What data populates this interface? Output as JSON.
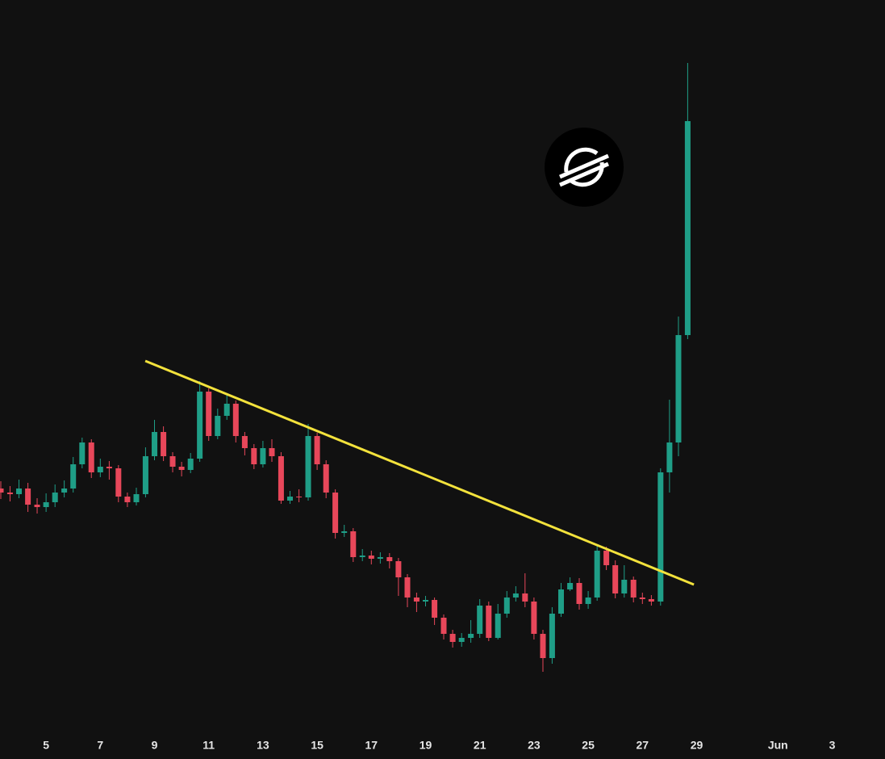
{
  "chart_data": {
    "type": "candlestick",
    "up_color": "#1f9e87",
    "down_color": "#e8475a",
    "xlim": [
      3.3,
      35.95
    ],
    "ylim": [
      0,
      90
    ],
    "xticks": [
      5,
      7,
      9,
      11,
      13,
      15,
      17,
      19,
      21,
      23,
      25,
      27,
      29,
      {
        "value": 32,
        "label": "Jun"
      },
      {
        "value": 34,
        "label": "3"
      }
    ],
    "x": [
      3.33,
      3.67,
      4,
      4.33,
      4.67,
      5,
      5.33,
      5.67,
      6,
      6.33,
      6.67,
      7,
      7.33,
      7.67,
      8,
      8.33,
      8.67,
      9,
      9.33,
      9.67,
      10,
      10.33,
      10.67,
      11,
      11.33,
      11.67,
      12,
      12.33,
      12.67,
      13,
      13.33,
      13.67,
      14,
      14.33,
      14.67,
      15,
      15.33,
      15.67,
      16,
      16.33,
      16.67,
      17,
      17.33,
      17.67,
      18,
      18.33,
      18.67,
      19,
      19.33,
      19.67,
      20,
      20.33,
      20.67,
      21,
      21.33,
      21.67,
      22,
      22.33,
      22.67,
      23,
      23.33,
      23.67,
      24,
      24.33,
      24.67,
      25,
      25.33,
      25.67,
      26,
      26.33,
      26.67,
      27,
      27.33,
      27.67,
      28,
      28.33,
      28.67
    ],
    "open": [
      29.5,
      29.0,
      28.8,
      29.5,
      27.5,
      27.2,
      27.8,
      29.0,
      29.5,
      32.5,
      35.2,
      31.5,
      32.2,
      32.0,
      28.5,
      27.8,
      28.8,
      33.5,
      36.5,
      33.5,
      32.2,
      31.8,
      33.2,
      41.5,
      36.0,
      38.5,
      40.0,
      36.0,
      34.5,
      32.5,
      34.5,
      33.5,
      28.0,
      28.5,
      28.4,
      36.0,
      32.5,
      29.0,
      24.0,
      24.2,
      21.0,
      21.2,
      20.8,
      21.0,
      20.5,
      18.5,
      16.0,
      15.5,
      15.7,
      13.5,
      11.5,
      10.5,
      11.0,
      11.5,
      15.0,
      11.0,
      14.0,
      16.0,
      16.5,
      15.5,
      11.5,
      8.5,
      14.0,
      17.0,
      17.8,
      15.2,
      16.0,
      21.8,
      20.0,
      16.5,
      18.2,
      16.0,
      15.8,
      15.5,
      31.5,
      35.2,
      48.5
    ],
    "high": [
      30.4,
      29.8,
      30.6,
      30.2,
      28.3,
      28.9,
      30.0,
      30.5,
      33.4,
      35.8,
      35.6,
      33.2,
      32.9,
      32.4,
      29.0,
      29.6,
      34.6,
      38.0,
      37.2,
      34.0,
      32.8,
      33.9,
      42.8,
      41.9,
      39.4,
      41.2,
      40.4,
      36.5,
      35.0,
      35.4,
      35.6,
      34.0,
      29.2,
      29.4,
      37.5,
      36.4,
      33.0,
      29.4,
      25.0,
      24.6,
      22.0,
      21.8,
      21.6,
      21.5,
      20.9,
      18.9,
      16.6,
      16.2,
      16.0,
      13.9,
      12.0,
      11.6,
      13.2,
      15.8,
      15.5,
      15.2,
      16.8,
      17.4,
      19.0,
      16.0,
      12.0,
      14.8,
      17.8,
      18.5,
      18.4,
      16.8,
      22.6,
      22.3,
      20.6,
      20.0,
      18.6,
      16.6,
      16.3,
      32.0,
      40.5,
      50.8,
      82.2
    ],
    "low": [
      28.2,
      27.9,
      28.3,
      26.6,
      26.4,
      26.6,
      27.2,
      28.4,
      29.0,
      32.0,
      30.8,
      30.9,
      30.6,
      27.8,
      27.2,
      27.4,
      28.4,
      33.0,
      32.9,
      31.5,
      31.0,
      31.4,
      32.8,
      35.4,
      35.6,
      38.0,
      35.2,
      33.6,
      31.9,
      32.1,
      32.8,
      27.6,
      27.6,
      27.8,
      28.0,
      31.8,
      28.3,
      23.3,
      23.5,
      20.4,
      20.5,
      20.1,
      20.2,
      19.6,
      16.2,
      14.8,
      14.2,
      14.9,
      12.6,
      10.8,
      9.8,
      9.9,
      10.4,
      11.0,
      10.6,
      10.8,
      13.5,
      15.5,
      14.8,
      10.8,
      6.8,
      7.8,
      13.6,
      16.8,
      14.5,
      14.6,
      15.6,
      19.4,
      15.9,
      16.0,
      15.4,
      15.2,
      15.0,
      15.0,
      29.0,
      33.5,
      48.0
    ],
    "close": [
      29.0,
      28.8,
      29.5,
      27.5,
      27.2,
      27.8,
      29.0,
      29.5,
      32.5,
      35.2,
      31.5,
      32.2,
      32.0,
      28.5,
      27.8,
      28.8,
      33.5,
      36.5,
      33.5,
      32.2,
      31.8,
      33.2,
      41.5,
      36.0,
      38.5,
      40.0,
      36.0,
      34.5,
      32.5,
      34.5,
      33.5,
      28.0,
      28.5,
      28.4,
      36.0,
      32.5,
      29.0,
      24.0,
      24.2,
      21.0,
      21.2,
      20.8,
      21.0,
      20.5,
      18.5,
      16.0,
      15.5,
      15.7,
      13.5,
      11.5,
      10.5,
      11.0,
      11.5,
      15.0,
      11.0,
      14.0,
      16.0,
      16.5,
      15.5,
      11.5,
      8.5,
      14.0,
      17.0,
      17.8,
      15.2,
      16.0,
      21.8,
      20.0,
      16.5,
      18.2,
      16.0,
      15.8,
      15.5,
      31.5,
      35.2,
      48.5,
      75.0
    ],
    "trendline": {
      "x": [
        8.66,
        28.9
      ],
      "y": [
        45.3,
        17.6
      ],
      "color": "#f3e23c"
    }
  }
}
